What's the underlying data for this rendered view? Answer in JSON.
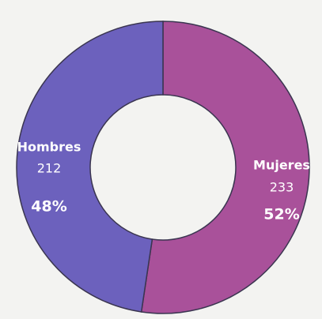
{
  "chart_data": {
    "type": "donut",
    "categories": [
      "Mujeres",
      "Hombres"
    ],
    "values": [
      233,
      212
    ],
    "percent_labels": [
      "52%",
      "48%"
    ],
    "colors": [
      "#a9519a",
      "#6c61bd"
    ]
  }
}
